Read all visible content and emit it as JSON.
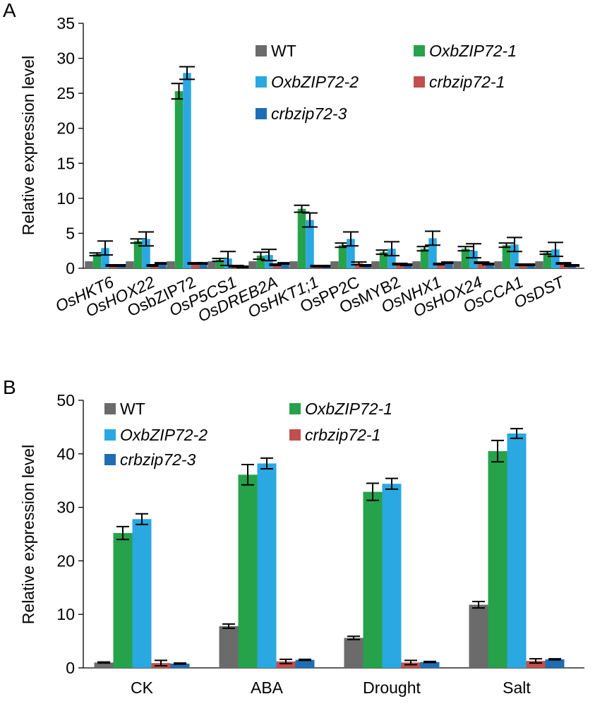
{
  "colors": {
    "WT": "#6b6b6b",
    "OxbZIP72-1": "#26a24a",
    "OxbZIP72-2": "#2aa8e2",
    "crbzip72-1": "#c0504d",
    "crbzip72-3": "#1f6db5"
  },
  "chart_data": [
    {
      "panel": "A",
      "type": "bar",
      "ylabel": "Relative expression level",
      "ylim": [
        0,
        35
      ],
      "yticks": [
        0,
        5,
        10,
        15,
        20,
        25,
        30,
        35
      ],
      "legend_position": "top-right",
      "categories": [
        "OsHKT6",
        "OsHOX22",
        "OsbZIP72",
        "OsP5CS1",
        "OsDREB2A",
        "OsHKT1;1",
        "OsPP2C",
        "OsMYB2",
        "OsNHX1",
        "OsHOX24",
        "OsCCA1",
        "OsDST"
      ],
      "category_italic": [
        true,
        true,
        false,
        true,
        true,
        true,
        false,
        false,
        true,
        true,
        true,
        true
      ],
      "series": [
        {
          "name": "WT",
          "italic": false,
          "values": [
            1,
            1,
            1,
            1,
            1,
            1,
            1,
            1,
            1,
            1,
            1,
            1
          ],
          "errors": [
            0,
            0,
            0,
            0,
            0,
            0,
            0,
            0,
            0,
            0,
            0,
            0
          ]
        },
        {
          "name": "OxbZIP72-1",
          "italic": true,
          "values": [
            2.0,
            3.9,
            25.3,
            1.2,
            1.8,
            8.5,
            3.3,
            2.3,
            2.8,
            2.8,
            3.3,
            2.2
          ],
          "errors": [
            0.2,
            0.3,
            1.1,
            0.2,
            0.5,
            0.5,
            0.3,
            0.3,
            0.3,
            0.3,
            0.3,
            0.2
          ]
        },
        {
          "name": "OxbZIP72-2",
          "italic": true,
          "values": [
            2.9,
            4.2,
            27.9,
            1.4,
            1.9,
            6.9,
            4.2,
            2.8,
            4.3,
            2.5,
            3.4,
            2.7
          ],
          "errors": [
            1.0,
            1.0,
            0.9,
            1.0,
            0.8,
            1.0,
            1.0,
            1.0,
            1.0,
            1.0,
            1.0,
            1.0
          ]
        },
        {
          "name": "crbzip72-1",
          "italic": true,
          "values": [
            0.4,
            0.4,
            0.7,
            0.3,
            0.5,
            0.3,
            0.7,
            0.6,
            0.6,
            0.8,
            0.5,
            0.7
          ],
          "errors": [
            0.1,
            0.1,
            0.1,
            0.1,
            0.1,
            0.1,
            0.2,
            0.1,
            0.1,
            0.1,
            0.1,
            0.1
          ]
        },
        {
          "name": "crbzip72-3",
          "italic": true,
          "values": [
            0.4,
            0.7,
            0.7,
            0.2,
            0.7,
            0.3,
            0.4,
            0.5,
            0.8,
            0.6,
            0.5,
            0.4
          ],
          "errors": [
            0.1,
            0.1,
            0.1,
            0.1,
            0.1,
            0.1,
            0.1,
            0.1,
            0.1,
            0.1,
            0.1,
            0.1
          ]
        }
      ]
    },
    {
      "panel": "B",
      "type": "bar",
      "ylabel": "Relative expression level",
      "ylim": [
        0,
        50
      ],
      "yticks": [
        0,
        10,
        20,
        30,
        40,
        50
      ],
      "legend_position": "top-left",
      "categories": [
        "CK",
        "ABA",
        "Drought",
        "Salt"
      ],
      "category_italic": [
        false,
        false,
        false,
        false
      ],
      "series": [
        {
          "name": "WT",
          "italic": false,
          "values": [
            1.0,
            7.8,
            5.6,
            11.8
          ],
          "errors": [
            0.1,
            0.4,
            0.3,
            0.6
          ]
        },
        {
          "name": "OxbZIP72-1",
          "italic": true,
          "values": [
            25.2,
            36.1,
            32.9,
            40.5
          ],
          "errors": [
            1.2,
            1.9,
            1.6,
            2.0
          ]
        },
        {
          "name": "OxbZIP72-2",
          "italic": true,
          "values": [
            27.8,
            38.2,
            34.4,
            43.8
          ],
          "errors": [
            1.0,
            1.0,
            1.0,
            0.9
          ]
        },
        {
          "name": "crbzip72-1",
          "italic": true,
          "values": [
            0.9,
            1.2,
            1.0,
            1.3
          ],
          "errors": [
            0.5,
            0.4,
            0.4,
            0.4
          ]
        },
        {
          "name": "crbzip72-3",
          "italic": true,
          "values": [
            0.8,
            1.5,
            1.1,
            1.6
          ],
          "errors": [
            0.1,
            0.1,
            0.1,
            0.1
          ]
        }
      ]
    }
  ]
}
